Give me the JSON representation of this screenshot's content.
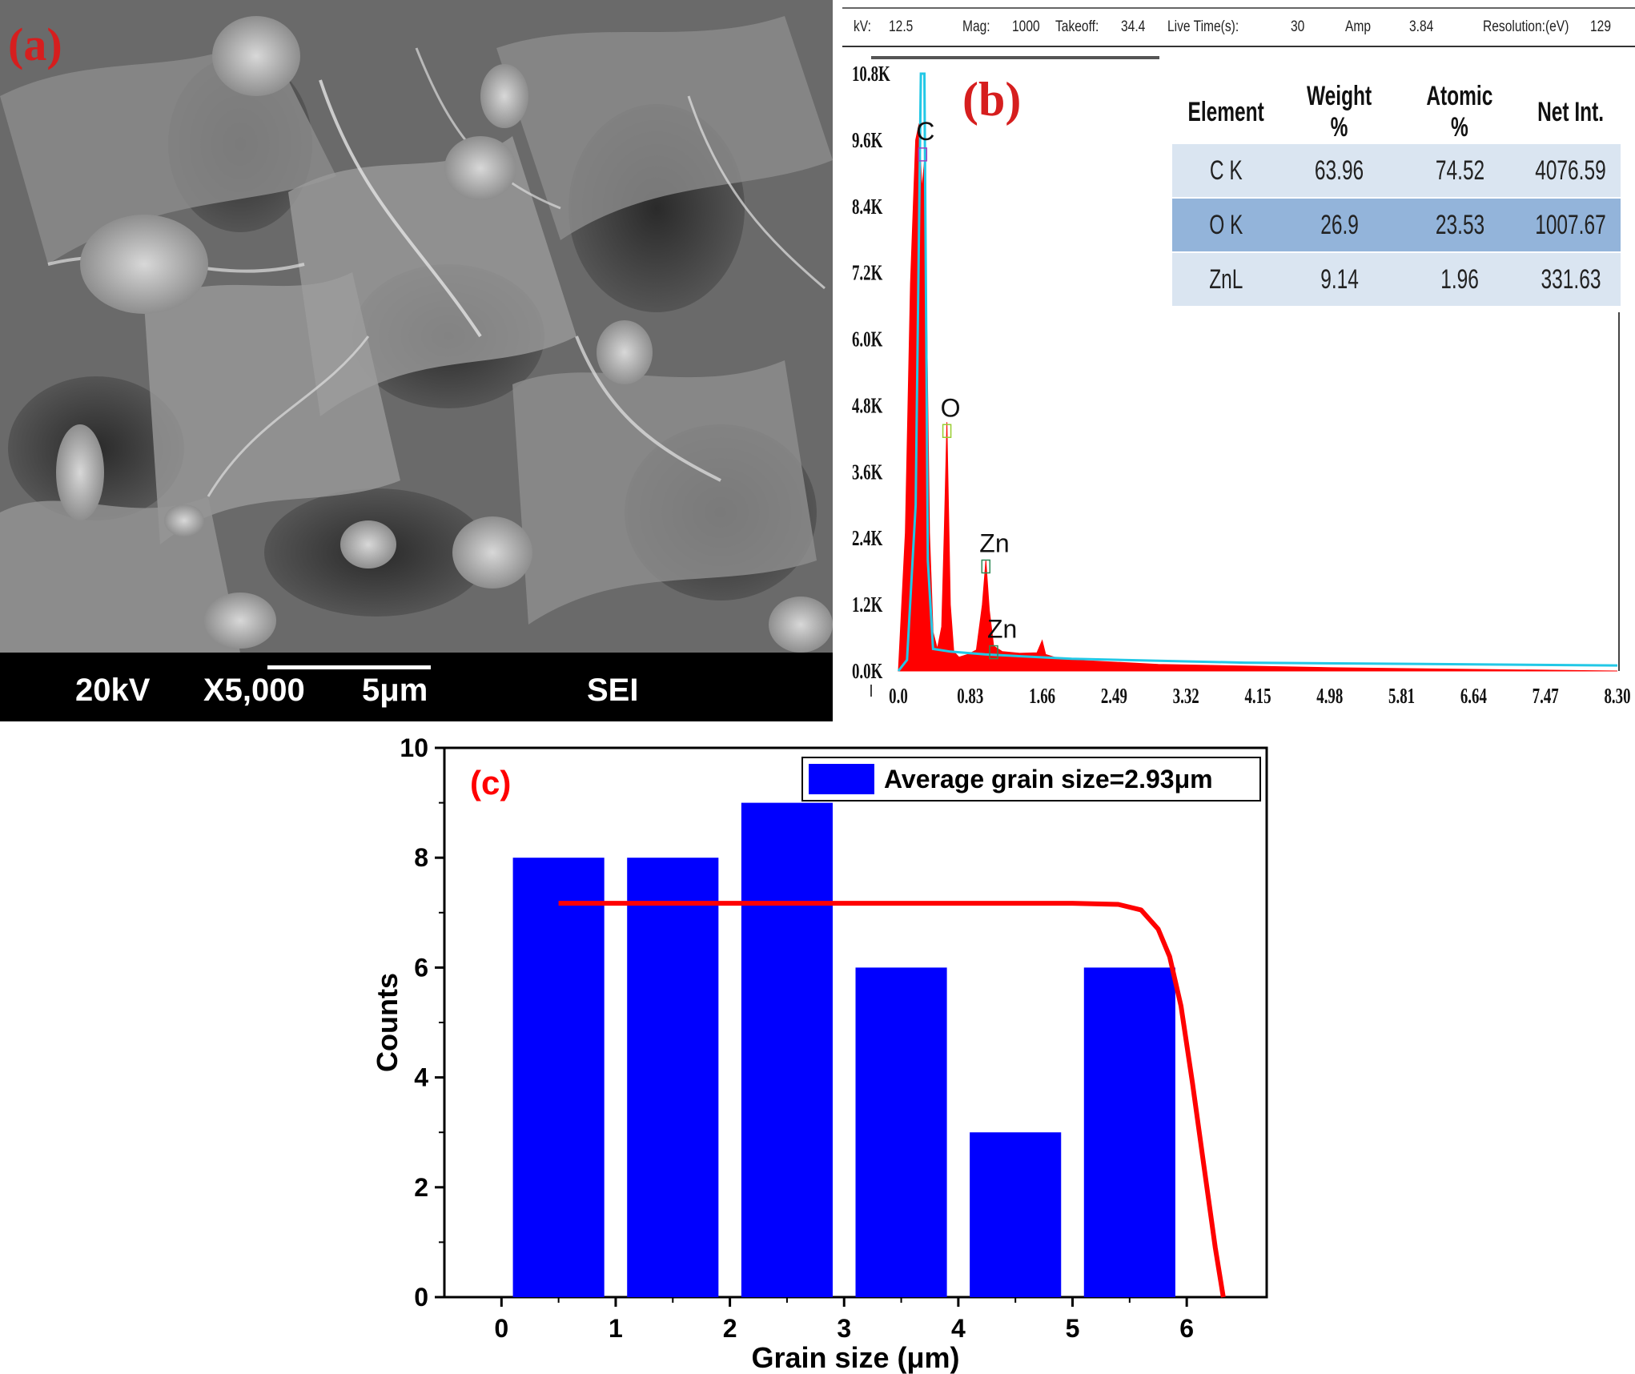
{
  "panels": {
    "a": {
      "letter": "(a)",
      "accent": "#d61e1e"
    },
    "b": {
      "letter": "(b)",
      "accent": "#d61e1e"
    },
    "c": {
      "letter": "(c)",
      "accent": "#ff0000"
    }
  },
  "sem": {
    "voltage": "20kV",
    "magnification": "X5,000",
    "scale_bar": "5μm",
    "mode": "SEI",
    "bar_color": "#000000"
  },
  "eds_header": [
    {
      "label": "kV:",
      "value": "12.5"
    },
    {
      "label": "Mag:",
      "value": "1000"
    },
    {
      "label": "Takeoff:",
      "value": "34.4"
    },
    {
      "label": "Live Time(s):",
      "value": "30"
    },
    {
      "label": "Amp",
      "value": "3.84"
    },
    {
      "label": "Resolution:(eV)",
      "value": "129"
    }
  ],
  "eds_table": {
    "headers": [
      "Element",
      "Weight %",
      "Atomic %",
      "Net Int."
    ],
    "rows": [
      [
        "C K",
        "63.96",
        "74.52",
        "4076.59"
      ],
      [
        "O K",
        "26.9",
        "23.53",
        "1007.67"
      ],
      [
        "ZnL",
        "9.14",
        "1.96",
        "331.63"
      ]
    ]
  },
  "chart_data": [
    {
      "panel": "b",
      "type": "area",
      "x_ticks": [
        "0.0",
        "0.83",
        "1.66",
        "2.49",
        "3.32",
        "4.15",
        "4.98",
        "5.81",
        "6.64",
        "7.47",
        "8.30"
      ],
      "y_ticks": [
        "0.0K",
        "1.2K",
        "2.4K",
        "3.6K",
        "4.8K",
        "6.0K",
        "7.2K",
        "8.4K",
        "9.6K",
        "10.8K"
      ],
      "xlim": [
        0,
        8.3
      ],
      "ylim": [
        0,
        10800
      ],
      "series": [
        {
          "color": "#ff0000",
          "x": [
            0.0,
            0.08,
            0.14,
            0.2,
            0.24,
            0.27,
            0.3,
            0.33,
            0.36,
            0.4,
            0.45,
            0.5,
            0.53,
            0.56,
            0.6,
            0.64,
            0.7,
            0.8,
            0.9,
            0.97,
            1.01,
            1.05,
            1.1,
            1.2,
            1.4,
            1.6,
            1.66,
            1.7,
            1.8,
            2.0,
            3.0,
            5.0,
            8.3
          ],
          "y": [
            0,
            2500,
            7000,
            9600,
            9900,
            8700,
            9200,
            6000,
            2500,
            700,
            400,
            800,
            2500,
            4500,
            1200,
            350,
            250,
            300,
            380,
            1200,
            2000,
            1100,
            450,
            350,
            320,
            330,
            550,
            300,
            250,
            200,
            120,
            60,
            0
          ]
        },
        {
          "color": "#22c8e6",
          "x": [
            0.0,
            0.1,
            0.2,
            0.26,
            0.3,
            0.34,
            0.4,
            0.6,
            1.0,
            2.0,
            4.0,
            8.3
          ],
          "y": [
            0,
            200,
            3000,
            10800,
            10800,
            2000,
            400,
            350,
            300,
            220,
            150,
            100
          ]
        }
      ],
      "peak_labels": [
        {
          "text": "C",
          "x": 0.28,
          "y": 9600
        },
        {
          "text": "O",
          "x": 0.56,
          "y": 4600
        },
        {
          "text": "Zn",
          "x": 1.01,
          "y": 2150
        },
        {
          "text": "Zn",
          "x": 1.1,
          "y": 600
        }
      ]
    },
    {
      "panel": "c",
      "type": "bar",
      "xlabel": "Grain size (μm)",
      "ylabel": "Counts",
      "xlim": [
        -0.5,
        6.7
      ],
      "ylim": [
        0,
        10
      ],
      "x_ticks": [
        0,
        1,
        2,
        3,
        4,
        5,
        6
      ],
      "y_ticks": [
        0,
        2,
        4,
        6,
        8,
        10
      ],
      "bin_width": 0.8,
      "categories": [
        0.5,
        1.5,
        2.5,
        3.5,
        4.5,
        5.5
      ],
      "values": [
        8,
        8,
        9,
        6,
        3,
        6
      ],
      "bar_color": "#0000ff",
      "legend": "Average grain size=2.93μm",
      "legend_position": "top-right",
      "fit_curve": {
        "color": "#ff0000",
        "x": [
          0.5,
          1.0,
          2.0,
          3.0,
          4.0,
          5.0,
          5.4,
          5.6,
          5.75,
          5.85,
          5.95,
          6.05,
          6.15,
          6.25,
          6.32
        ],
        "y": [
          7.17,
          7.17,
          7.17,
          7.17,
          7.17,
          7.17,
          7.15,
          7.05,
          6.7,
          6.2,
          5.3,
          3.9,
          2.4,
          0.9,
          0.0
        ]
      }
    }
  ]
}
